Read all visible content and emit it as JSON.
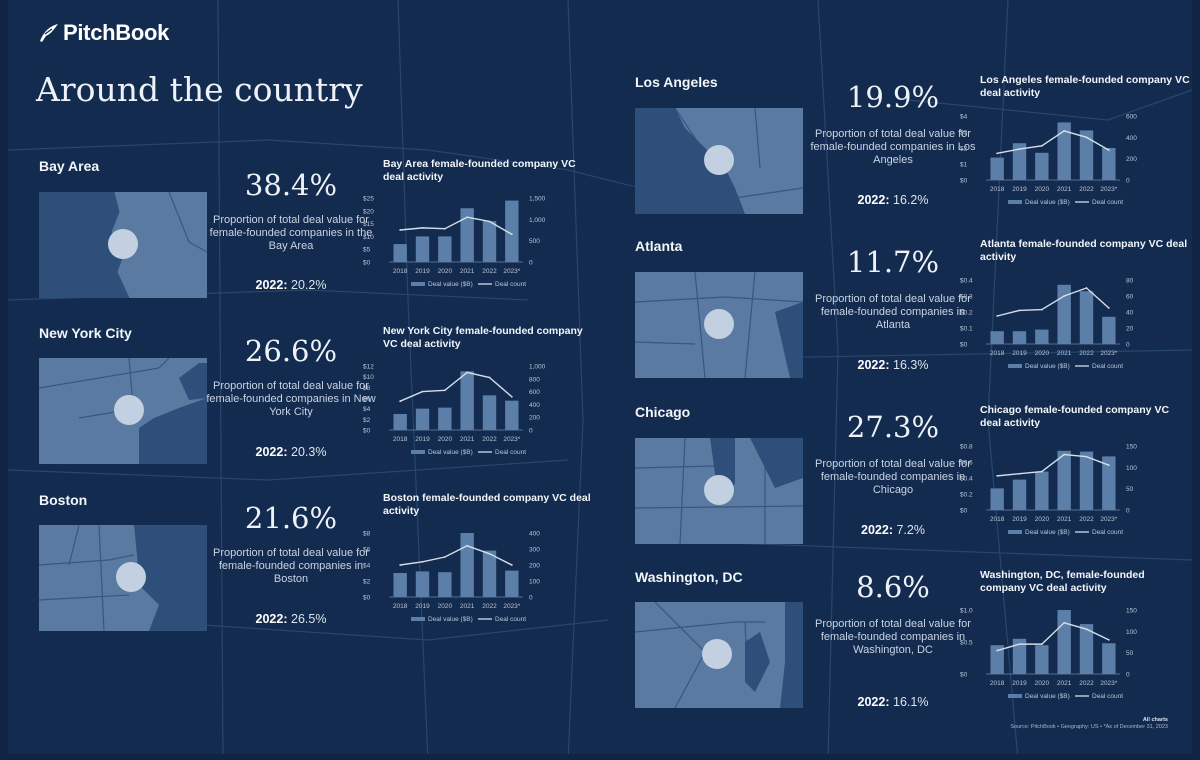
{
  "brand": {
    "name": "PitchBook",
    "logo_icon": "feather-icon"
  },
  "page_title": "Around the country",
  "colors": {
    "background": "#132b4f",
    "bar": "#5b7fa8",
    "line": "#d5dde8",
    "map_fill": "#5a7aa2"
  },
  "regions": [
    {
      "name": "Bay Area",
      "pct": "38.4%",
      "desc": "Proportion of total deal value for female-founded companies in the Bay Area",
      "prev_label": "2022:",
      "prev_value": "20.2%",
      "chart_title": "Bay Area female-founded company VC deal activity"
    },
    {
      "name": "New York City",
      "pct": "26.6%",
      "desc": "Proportion of total deal value for female-founded companies in New York City",
      "prev_label": "2022:",
      "prev_value": "20.3%",
      "chart_title": "New York City female-founded company VC deal activity"
    },
    {
      "name": "Boston",
      "pct": "21.6%",
      "desc": "Proportion of total deal value for female-founded companies in Boston",
      "prev_label": "2022:",
      "prev_value": "26.5%",
      "chart_title": "Boston female-founded company VC deal activity"
    },
    {
      "name": "Los Angeles",
      "pct": "19.9%",
      "desc": "Proportion of total deal value for female-founded companies in Los Angeles",
      "prev_label": "2022:",
      "prev_value": "16.2%",
      "chart_title": "Los Angeles female-founded company VC deal activity"
    },
    {
      "name": "Atlanta",
      "pct": "11.7%",
      "desc": "Proportion of total deal value for female-founded companies in Atlanta",
      "prev_label": "2022:",
      "prev_value": "16.3%",
      "chart_title": "Atlanta female-founded company VC deal activity"
    },
    {
      "name": "Chicago",
      "pct": "27.3%",
      "desc": "Proportion of total deal value for female-founded companies in Chicago",
      "prev_label": "2022:",
      "prev_value": "7.2%",
      "chart_title": "Chicago female-founded company VC deal activity"
    },
    {
      "name": "Washington, DC",
      "pct": "8.6%",
      "desc": "Proportion of total deal value for female-founded companies in Washington, DC",
      "prev_label": "2022:",
      "prev_value": "16.1%",
      "chart_title": "Washington, DC, female-founded company VC deal activity"
    }
  ],
  "chart_data": [
    {
      "type": "bar",
      "title": "Bay Area female-founded company VC deal activity",
      "categories": [
        "2018",
        "2019",
        "2020",
        "2021",
        "2022",
        "2023*"
      ],
      "series": [
        {
          "name": "Deal value ($B)",
          "values": [
            7,
            10,
            10,
            21,
            16,
            24
          ],
          "axis": "left"
        },
        {
          "name": "Deal count",
          "values": [
            750,
            800,
            780,
            1050,
            950,
            650
          ],
          "axis": "right"
        }
      ],
      "y_left_ticks": [
        "$25",
        "$20",
        "$15",
        "$10",
        "$5",
        "$0"
      ],
      "y_left_max": 25,
      "y_right_ticks": [
        "1,500",
        "1,000",
        "500",
        "0"
      ],
      "y_right_max": 1500
    },
    {
      "type": "bar",
      "title": "New York City female-founded company VC deal activity",
      "categories": [
        "2018",
        "2019",
        "2020",
        "2021",
        "2022",
        "2023*"
      ],
      "series": [
        {
          "name": "Deal value ($B)",
          "values": [
            3,
            4,
            4.2,
            11,
            6.5,
            5.5
          ],
          "axis": "left"
        },
        {
          "name": "Deal count",
          "values": [
            450,
            600,
            620,
            900,
            820,
            520
          ],
          "axis": "right"
        }
      ],
      "y_left_ticks": [
        "$12",
        "$10",
        "$8",
        "$6",
        "$4",
        "$2",
        "$0"
      ],
      "y_left_max": 12,
      "y_right_ticks": [
        "1,000",
        "800",
        "600",
        "400",
        "200",
        "0"
      ],
      "y_right_max": 1000
    },
    {
      "type": "bar",
      "title": "Boston female-founded company VC deal activity",
      "categories": [
        "2018",
        "2019",
        "2020",
        "2021",
        "2022",
        "2023*"
      ],
      "series": [
        {
          "name": "Deal value ($B)",
          "values": [
            3,
            3.2,
            3.1,
            8,
            5.8,
            3.3
          ],
          "axis": "left"
        },
        {
          "name": "Deal count",
          "values": [
            200,
            220,
            250,
            320,
            270,
            200
          ],
          "axis": "right"
        }
      ],
      "y_left_ticks": [
        "$8",
        "$6",
        "$4",
        "$2",
        "$0"
      ],
      "y_left_max": 8,
      "y_right_ticks": [
        "400",
        "300",
        "200",
        "100",
        "0"
      ],
      "y_right_max": 400
    },
    {
      "type": "bar",
      "title": "Los Angeles female-founded company VC deal activity",
      "categories": [
        "2018",
        "2019",
        "2020",
        "2021",
        "2022",
        "2023*"
      ],
      "series": [
        {
          "name": "Deal value ($B)",
          "values": [
            1.4,
            2.3,
            1.7,
            3.6,
            3.1,
            2.0
          ],
          "axis": "left"
        },
        {
          "name": "Deal count",
          "values": [
            250,
            290,
            320,
            460,
            400,
            280
          ],
          "axis": "right"
        }
      ],
      "y_left_ticks": [
        "$4",
        "$3",
        "$2",
        "$1",
        "$0"
      ],
      "y_left_max": 4,
      "y_right_ticks": [
        "600",
        "400",
        "200",
        "0"
      ],
      "y_right_max": 600
    },
    {
      "type": "bar",
      "title": "Atlanta female-founded company VC deal activity",
      "categories": [
        "2018",
        "2019",
        "2020",
        "2021",
        "2022",
        "2023*"
      ],
      "series": [
        {
          "name": "Deal value ($B)",
          "values": [
            0.08,
            0.08,
            0.09,
            0.37,
            0.33,
            0.17
          ],
          "axis": "left"
        },
        {
          "name": "Deal count",
          "values": [
            35,
            42,
            43,
            60,
            70,
            45
          ],
          "axis": "right"
        }
      ],
      "y_left_ticks": [
        "$0.4",
        "$0.3",
        "$0.2",
        "$0.1",
        "$0"
      ],
      "y_left_max": 0.4,
      "y_right_ticks": [
        "80",
        "60",
        "40",
        "20",
        "0"
      ],
      "y_right_max": 80
    },
    {
      "type": "bar",
      "title": "Chicago female-founded company VC deal activity",
      "categories": [
        "2018",
        "2019",
        "2020",
        "2021",
        "2022",
        "2023*"
      ],
      "series": [
        {
          "name": "Deal value ($B)",
          "values": [
            0.27,
            0.38,
            0.48,
            0.74,
            0.73,
            0.67
          ],
          "axis": "left"
        },
        {
          "name": "Deal count",
          "values": [
            80,
            85,
            90,
            130,
            125,
            105
          ],
          "axis": "right"
        }
      ],
      "y_left_ticks": [
        "$0.8",
        "$0.6",
        "$0.4",
        "$0.2",
        "$0"
      ],
      "y_left_max": 0.8,
      "y_right_ticks": [
        "150",
        "100",
        "50",
        "0"
      ],
      "y_right_max": 150
    },
    {
      "type": "bar",
      "title": "Washington, DC, female-founded company VC deal activity",
      "categories": [
        "2018",
        "2019",
        "2020",
        "2021",
        "2022",
        "2023*"
      ],
      "series": [
        {
          "name": "Deal value ($B)",
          "values": [
            0.45,
            0.55,
            0.45,
            1.0,
            0.78,
            0.48
          ],
          "axis": "left"
        },
        {
          "name": "Deal count",
          "values": [
            55,
            70,
            70,
            120,
            105,
            80
          ],
          "axis": "right"
        }
      ],
      "y_left_ticks": [
        "$1.0",
        "$0.5",
        "$0"
      ],
      "y_left_max": 1.0,
      "y_right_ticks": [
        "150",
        "100",
        "50",
        "0"
      ],
      "y_right_max": 150
    }
  ],
  "legend": {
    "bar_label": "Deal value ($B)",
    "line_label": "Deal count"
  },
  "footnote": {
    "line1": "All charts",
    "line2": "Source: PitchBook  •  Geography: US  •  *As of December 31, 2023"
  }
}
